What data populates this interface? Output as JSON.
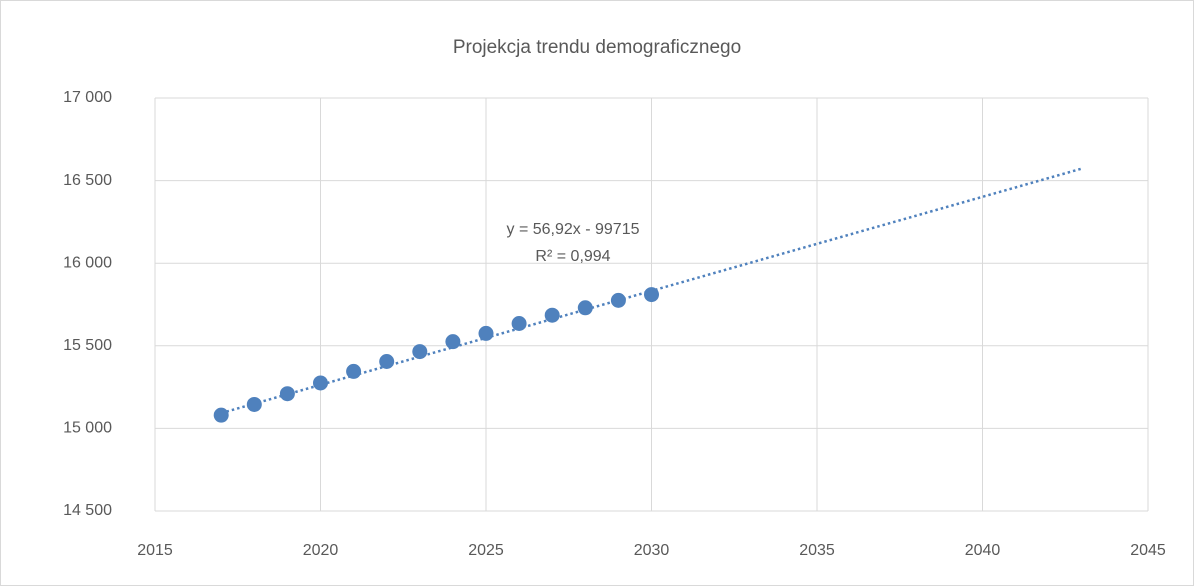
{
  "chart_data": {
    "type": "scatter",
    "title": "Projekcja trendu demograficznego",
    "x": [
      2017,
      2018,
      2019,
      2020,
      2021,
      2022,
      2023,
      2024,
      2025,
      2026,
      2027,
      2028,
      2029,
      2030
    ],
    "values": [
      15080,
      15145,
      15210,
      15275,
      15345,
      15405,
      15465,
      15525,
      15575,
      15635,
      15685,
      15730,
      15775,
      15810
    ],
    "color": "#4f81bd",
    "trendline": {
      "x": [
        2017,
        2043
      ],
      "values": [
        15092.6,
        16572.6
      ],
      "color": "#4f81bd",
      "style": "dotted"
    },
    "annotations": [
      "y = 56,92x - 99715",
      "R² = 0,994"
    ],
    "xlim": [
      2015,
      2045
    ],
    "xticks": [
      2015,
      2020,
      2025,
      2030,
      2035,
      2040,
      2045
    ],
    "ylim": [
      14500,
      17000
    ],
    "yticks": [
      {
        "value": 14500,
        "label": "14 500"
      },
      {
        "value": 15000,
        "label": "15 000"
      },
      {
        "value": 15500,
        "label": "15 500"
      },
      {
        "value": 16000,
        "label": "16 000"
      },
      {
        "value": 16500,
        "label": "16 500"
      },
      {
        "value": 17000,
        "label": "17 000"
      }
    ],
    "grid": true
  }
}
